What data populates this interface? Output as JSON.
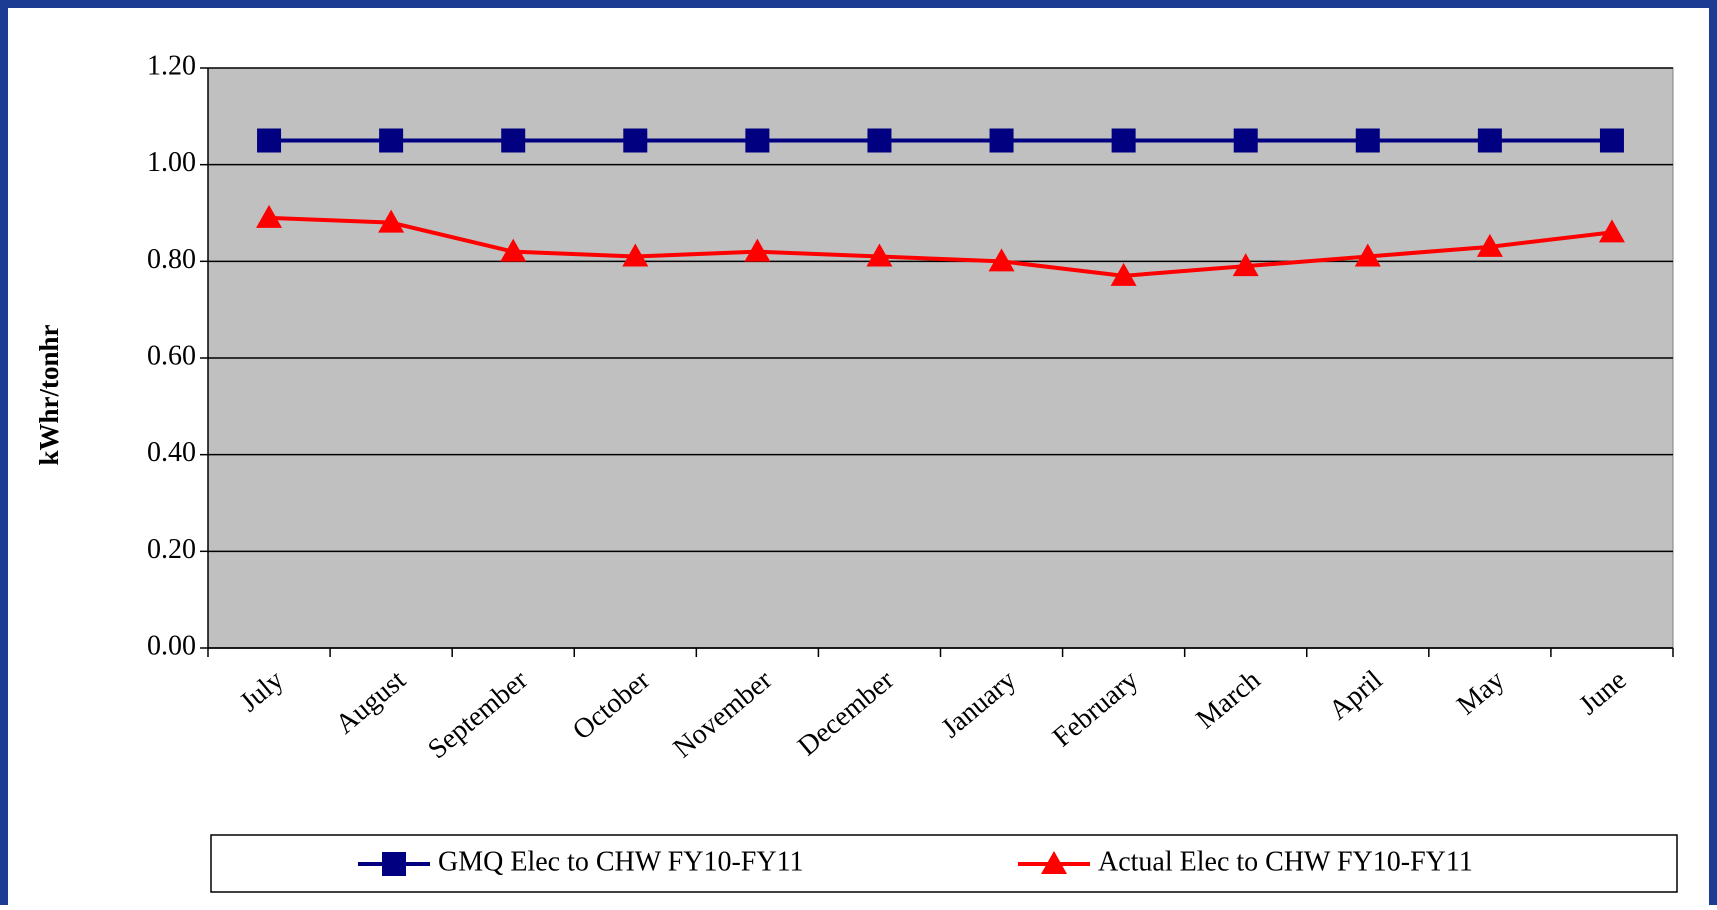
{
  "chart_data": {
    "type": "line",
    "y_label": "kWhr/tonhr",
    "categories": [
      "July",
      "August",
      "September",
      "October",
      "November",
      "December",
      "January",
      "February",
      "March",
      "April",
      "May",
      "June"
    ],
    "series": [
      {
        "name": "GMQ Elec  to CHW FY10-FY11",
        "color": "#000080",
        "marker": "square",
        "values": [
          1.05,
          1.05,
          1.05,
          1.05,
          1.05,
          1.05,
          1.05,
          1.05,
          1.05,
          1.05,
          1.05,
          1.05
        ]
      },
      {
        "name": "Actual Elec  to CHW FY10-FY11",
        "color": "#ff0000",
        "marker": "triangle",
        "values": [
          0.89,
          0.88,
          0.82,
          0.81,
          0.82,
          0.81,
          0.8,
          0.77,
          0.79,
          0.81,
          0.83,
          0.86
        ]
      }
    ],
    "ylim": [
      0,
      1.2
    ],
    "yticks": [
      {
        "value": 0,
        "label": "0.00"
      },
      {
        "value": 0.2,
        "label": "0.20"
      },
      {
        "value": 0.4,
        "label": "0.40"
      },
      {
        "value": 0.6,
        "label": "0.60"
      },
      {
        "value": 0.8,
        "label": "0.80"
      },
      {
        "value": 1.0,
        "label": "1.00"
      },
      {
        "value": 1.2,
        "label": "1.20"
      }
    ],
    "grid": true,
    "legend": "bottom"
  }
}
